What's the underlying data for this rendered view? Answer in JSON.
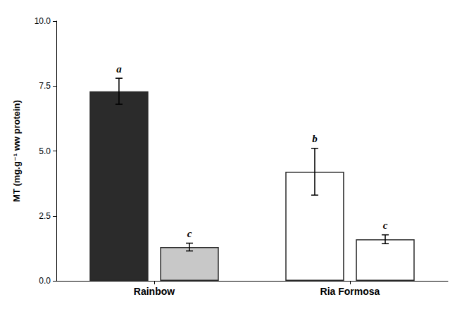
{
  "chart_data": {
    "type": "bar",
    "ylabel": "MT (mg.g⁻¹ ww protein)",
    "categories": [
      "Rainbow",
      "Ria Formosa"
    ],
    "series": [
      {
        "values": [
          7.3,
          4.2
        ],
        "errors": [
          0.5,
          0.9
        ],
        "colors": [
          "#2b2b2b",
          "#ffffff"
        ],
        "annotations": [
          "a",
          "b"
        ]
      },
      {
        "values": [
          1.3,
          1.6
        ],
        "errors": [
          0.15,
          0.17
        ],
        "colors": [
          "#c8c8c8",
          "#ffffff"
        ],
        "annotations": [
          "c",
          "c"
        ]
      }
    ],
    "ylim": [
      0,
      10
    ],
    "yticks": [
      {
        "value": 0,
        "label": "0.0"
      },
      {
        "value": 2.5,
        "label": "2.5"
      },
      {
        "value": 5,
        "label": "5.0"
      },
      {
        "value": 7.5,
        "label": "7.5"
      },
      {
        "value": 10,
        "label": "10.0"
      }
    ],
    "grid": false
  }
}
